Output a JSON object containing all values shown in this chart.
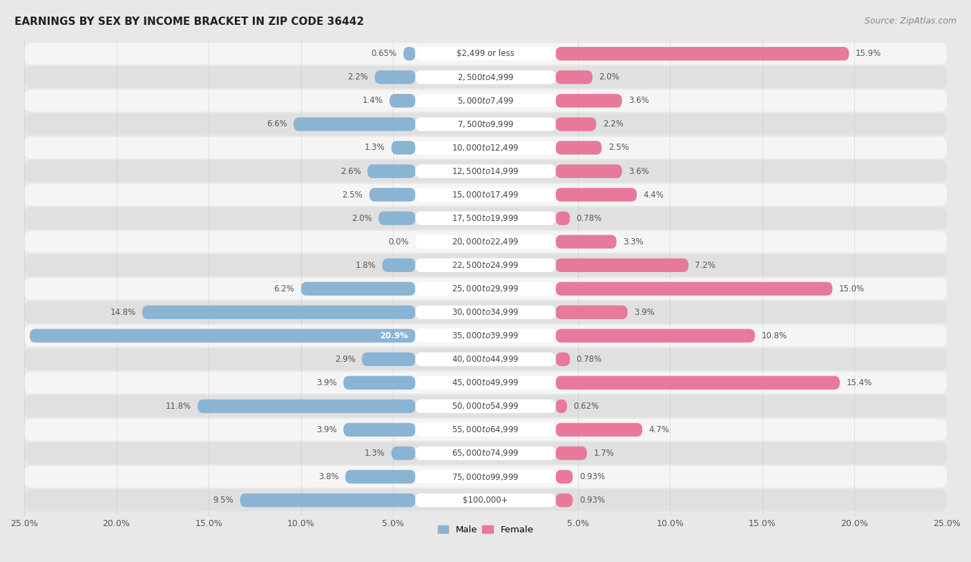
{
  "title": "EARNINGS BY SEX BY INCOME BRACKET IN ZIP CODE 36442",
  "source": "Source: ZipAtlas.com",
  "categories": [
    "$2,499 or less",
    "$2,500 to $4,999",
    "$5,000 to $7,499",
    "$7,500 to $9,999",
    "$10,000 to $12,499",
    "$12,500 to $14,999",
    "$15,000 to $17,499",
    "$17,500 to $19,999",
    "$20,000 to $22,499",
    "$22,500 to $24,999",
    "$25,000 to $29,999",
    "$30,000 to $34,999",
    "$35,000 to $39,999",
    "$40,000 to $44,999",
    "$45,000 to $49,999",
    "$50,000 to $54,999",
    "$55,000 to $64,999",
    "$65,000 to $74,999",
    "$75,000 to $99,999",
    "$100,000+"
  ],
  "male_values": [
    0.65,
    2.2,
    1.4,
    6.6,
    1.3,
    2.6,
    2.5,
    2.0,
    0.0,
    1.8,
    6.2,
    14.8,
    20.9,
    2.9,
    3.9,
    11.8,
    3.9,
    1.3,
    3.8,
    9.5
  ],
  "female_values": [
    15.9,
    2.0,
    3.6,
    2.2,
    2.5,
    3.6,
    4.4,
    0.78,
    3.3,
    7.2,
    15.0,
    3.9,
    10.8,
    0.78,
    15.4,
    0.62,
    4.7,
    1.7,
    0.93,
    0.93
  ],
  "male_color": "#8ab4d4",
  "female_color": "#e8799a",
  "male_color_light": "#aecce4",
  "female_color_light": "#f0a8bc",
  "xlim": 25.0,
  "background_color": "#e8e8e8",
  "row_color_light": "#f5f5f5",
  "row_color_dark": "#e0e0e0",
  "title_fontsize": 11,
  "source_fontsize": 9,
  "label_fontsize": 8.5,
  "category_fontsize": 8.5,
  "axis_label_fontsize": 9
}
